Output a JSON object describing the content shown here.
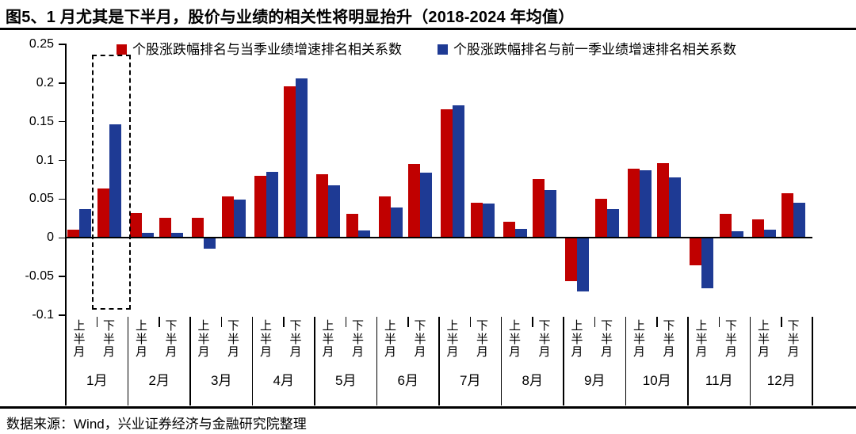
{
  "title": "图5、1 月尤其是下半月，股价与业绩的相关性将明显抬升（2018-2024 年均值）",
  "source_note": "数据来源：Wind，兴业证券经济与金融研究院整理",
  "colors": {
    "series_current": "#C00000",
    "series_previous": "#1E3A94",
    "axis": "#000000",
    "highlight_border": "#000000"
  },
  "chart_data": {
    "type": "bar",
    "title": "1月尤其是下半月，股价与业绩的相关性将明显抬升（2018-2024 年均值）",
    "categories": [
      "1月",
      "2月",
      "3月",
      "4月",
      "5月",
      "6月",
      "7月",
      "8月",
      "9月",
      "10月",
      "11月",
      "12月"
    ],
    "subcategories": [
      "上半月",
      "下半月"
    ],
    "series": [
      {
        "name": "个股涨跌幅排名与当季业绩增速排名相关系数",
        "color": "#C00000",
        "values": [
          0.011,
          0.064,
          0.032,
          0.026,
          0.026,
          0.054,
          0.08,
          0.196,
          0.082,
          0.031,
          0.054,
          0.096,
          0.166,
          0.045,
          0.021,
          0.076,
          -0.055,
          0.05,
          0.089,
          0.097,
          -0.035,
          0.031,
          0.024,
          0.058
        ]
      },
      {
        "name": "个股涨跌幅排名与前一季业绩增速排名相关系数",
        "color": "#1E3A94",
        "values": [
          0.037,
          0.147,
          0.006,
          0.006,
          -0.013,
          0.049,
          0.085,
          0.206,
          0.068,
          0.01,
          0.039,
          0.084,
          0.171,
          0.044,
          0.012,
          0.062,
          -0.068,
          0.037,
          0.087,
          0.078,
          -0.064,
          0.009,
          0.011,
          0.045
        ]
      }
    ],
    "xlabel": "",
    "ylabel": "",
    "ylim": [
      -0.1,
      0.25
    ],
    "yticks": [
      "0.25",
      "0.2",
      "0.15",
      "0.1",
      "0.05",
      "0",
      "-0.05",
      "-0.1"
    ],
    "grid": false,
    "legend_position": "top",
    "highlight_box": {
      "category": "1月",
      "subcategory": "下半月",
      "style": "dashed"
    }
  }
}
